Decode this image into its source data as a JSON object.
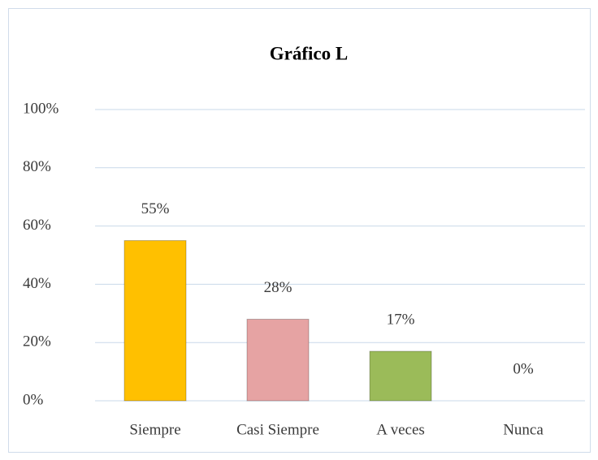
{
  "chart_data": {
    "type": "bar",
    "title": "Gráfico L",
    "categories": [
      "Siempre",
      "Casi Siempre",
      "A veces",
      "Nunca"
    ],
    "values": [
      55,
      28,
      17,
      0
    ],
    "value_labels": [
      "55%",
      "28%",
      "17%",
      "0%"
    ],
    "colors": [
      "#ffc000",
      "#e6a3a3",
      "#9bbb59",
      "#7f7f7f"
    ],
    "ylim": [
      0,
      100
    ],
    "yticks": [
      {
        "value": 0,
        "label": "0%"
      },
      {
        "value": 20,
        "label": "20%"
      },
      {
        "value": 40,
        "label": "40%"
      },
      {
        "value": 60,
        "label": "60%"
      },
      {
        "value": 80,
        "label": "80%"
      },
      {
        "value": 100,
        "label": "100%"
      }
    ],
    "grid": true
  }
}
